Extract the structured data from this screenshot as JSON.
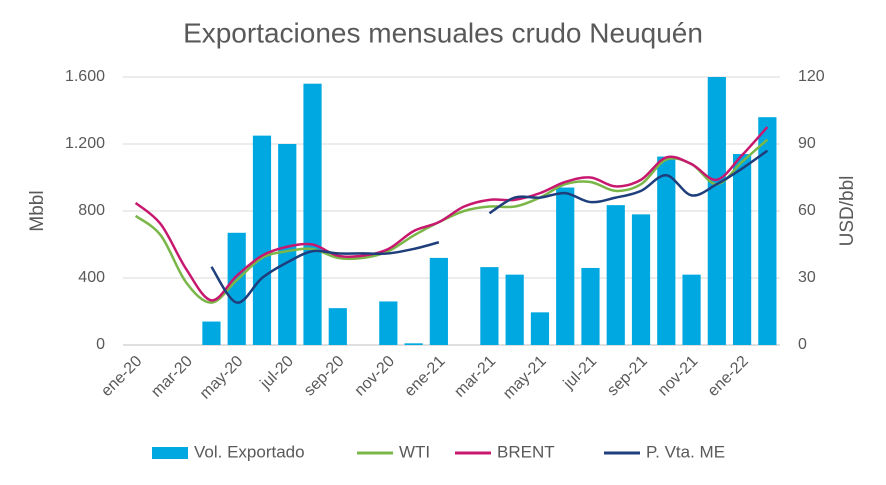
{
  "chart_data": {
    "type": "bar-line",
    "title": "Exportaciones mensuales crudo Neuquén",
    "ylabel": "Mbbl",
    "y2label": "USD/bbl",
    "categories": [
      "ene-20",
      null,
      "mar-20",
      null,
      "may-20",
      null,
      "jul-20",
      null,
      "sep-20",
      null,
      "nov-20",
      null,
      "ene-21",
      null,
      "mar-21",
      null,
      "may-21",
      null,
      "jul-21",
      null,
      "sep-21",
      null,
      "nov-21",
      null,
      "ene-22",
      null
    ],
    "ylim": [
      0,
      1600
    ],
    "yticks": [
      0,
      400,
      800,
      {
        "value": 1200,
        "label": "1.200"
      },
      {
        "value": 1600,
        "label": "1.600"
      }
    ],
    "y2lim": [
      0,
      120
    ],
    "y2ticks": [
      0,
      30,
      60,
      90,
      120
    ],
    "grid": true,
    "legend": "bottom",
    "series": [
      {
        "name": "Vol. Exportado",
        "type": "bar",
        "color": "#00a8e1",
        "values": [
          0,
          0,
          0,
          140,
          670,
          1250,
          1200,
          1560,
          220,
          0,
          260,
          10,
          520,
          0,
          465,
          420,
          195,
          940,
          460,
          835,
          780,
          1125,
          420,
          1600,
          1140,
          1360
        ]
      },
      {
        "name": "WTI",
        "type": "line",
        "axis": "y2",
        "color": "#7ab648",
        "values": [
          57.8,
          49,
          28,
          19,
          29,
          39,
          42,
          43,
          39,
          39,
          42,
          49,
          55,
          60,
          62,
          62,
          66,
          72,
          73,
          69,
          72,
          83,
          81,
          72,
          82,
          92
        ]
      },
      {
        "name": "BRENT",
        "type": "line",
        "axis": "y2",
        "color": "#c8176e",
        "values": [
          63.6,
          54,
          34,
          20,
          31,
          40,
          44,
          45,
          40,
          40,
          43,
          51,
          55,
          62,
          65,
          65,
          68,
          73,
          75,
          71,
          74,
          84,
          81,
          74,
          85,
          97.6
        ]
      },
      {
        "name": "P. Vta. ME",
        "type": "line",
        "axis": "y2",
        "color": "#1f3e7c",
        "values": [
          null,
          null,
          null,
          35,
          19,
          30,
          37,
          42,
          41,
          41,
          41,
          43,
          46,
          null,
          59,
          66,
          66,
          68,
          64,
          66,
          69,
          76,
          67,
          72,
          79,
          87
        ]
      }
    ]
  }
}
